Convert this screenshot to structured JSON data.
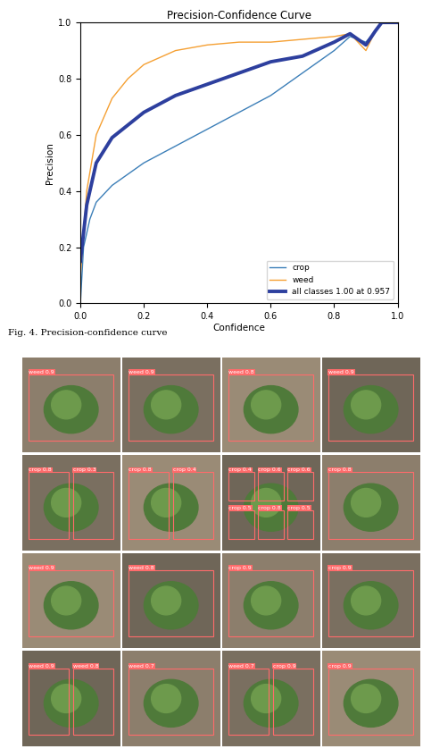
{
  "chart_data": {
    "type": "line",
    "title": "Precision-Confidence Curve",
    "x_label": "Confidence",
    "y_label": "Precision",
    "caption": "Fig. 4. Precision-confidence curve",
    "xlim": [
      0.0,
      1.0
    ],
    "ylim": [
      0.0,
      1.0
    ],
    "xticks": [
      0.0,
      0.2,
      0.4,
      0.6,
      0.8,
      1.0
    ],
    "yticks": [
      0.0,
      0.2,
      0.4,
      0.6,
      0.8,
      1.0
    ],
    "legend": "lower right",
    "series": [
      {
        "name": "crop",
        "color": "#3c7fb8",
        "x": [
          0.0,
          0.01,
          0.03,
          0.05,
          0.1,
          0.2,
          0.3,
          0.4,
          0.5,
          0.6,
          0.7,
          0.8,
          0.85,
          0.9,
          0.93,
          0.95,
          1.0
        ],
        "values": [
          0.0,
          0.2,
          0.3,
          0.36,
          0.42,
          0.5,
          0.56,
          0.62,
          0.68,
          0.74,
          0.82,
          0.9,
          0.95,
          0.93,
          0.97,
          1.0,
          1.0
        ]
      },
      {
        "name": "weed",
        "color": "#f5a033",
        "x": [
          0.0,
          0.02,
          0.05,
          0.1,
          0.15,
          0.2,
          0.3,
          0.4,
          0.5,
          0.6,
          0.7,
          0.8,
          0.85,
          0.9,
          0.93,
          0.95,
          1.0
        ],
        "values": [
          0.1,
          0.4,
          0.6,
          0.73,
          0.8,
          0.85,
          0.9,
          0.92,
          0.93,
          0.93,
          0.94,
          0.95,
          0.96,
          0.9,
          0.97,
          1.0,
          1.0
        ]
      },
      {
        "name": "all classes 1.00 at 0.957",
        "color": "#2d3f9e",
        "x": [
          0.0,
          0.02,
          0.05,
          0.1,
          0.2,
          0.3,
          0.4,
          0.5,
          0.6,
          0.7,
          0.8,
          0.85,
          0.9,
          0.93,
          0.95,
          1.0
        ],
        "values": [
          0.15,
          0.35,
          0.5,
          0.59,
          0.68,
          0.74,
          0.78,
          0.82,
          0.86,
          0.88,
          0.93,
          0.96,
          0.92,
          0.97,
          1.0,
          1.0
        ]
      }
    ]
  },
  "image_grid": {
    "rows": [
      [
        [
          "weed 0.9"
        ],
        [
          "weed 0.9"
        ],
        [
          "weed 0.8"
        ],
        [
          "weed 0.9"
        ]
      ],
      [
        [
          "crop 0.8",
          "crop 0.3"
        ],
        [
          "crop 0.8",
          "crop 0.4"
        ],
        [
          "crop 0.4",
          "crop 0.6",
          "crop 0.6",
          "crop 0.5",
          "crop 0.8",
          "crop 0.5"
        ],
        [
          "crop 0.8"
        ]
      ],
      [
        [
          "weed 0.9"
        ],
        [
          "weed 0.8"
        ],
        [
          "crop 0.9"
        ],
        [
          "crop 0.9"
        ]
      ],
      [
        [
          "weed 0.9",
          "weed 0.8"
        ],
        [
          "weed 0.7"
        ],
        [
          "weed 0.7",
          "crop 0.9"
        ],
        [
          "crop 0.9"
        ]
      ]
    ]
  }
}
